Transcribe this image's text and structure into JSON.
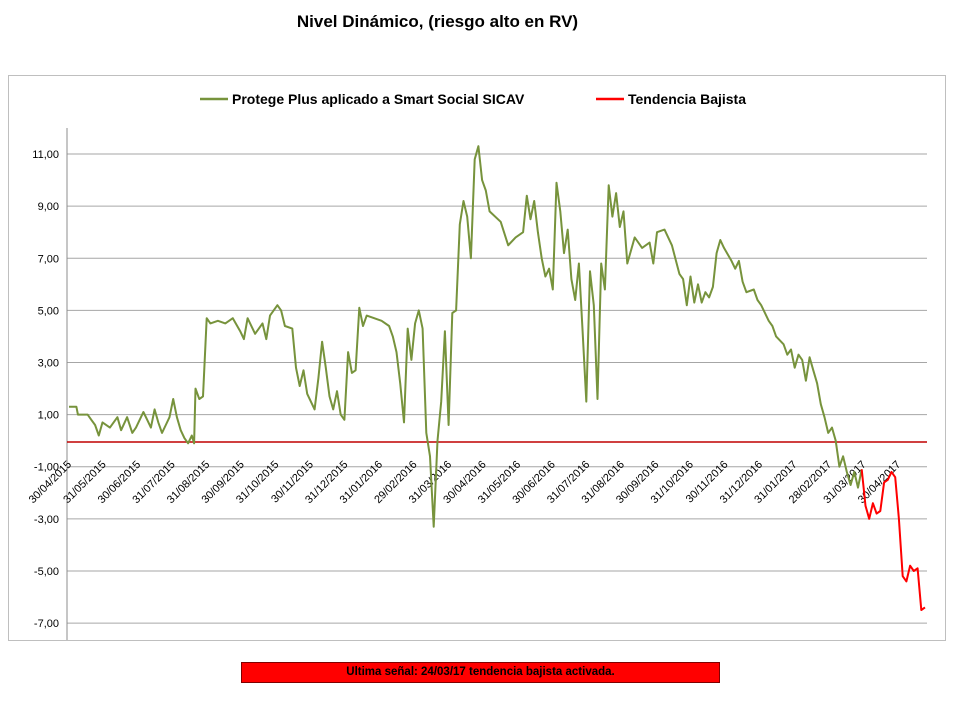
{
  "title": "Nivel Dinámico,  (riesgo alto en RV)",
  "signal_note": "Ultima señal: 24/03/17 tendencia bajista activada.",
  "colors": {
    "green": "#77933c",
    "red": "#ff0000",
    "grid": "#a6a6a6",
    "zero_line": "#c00000"
  },
  "chart_data": {
    "type": "line",
    "title": "",
    "xlabel": "",
    "ylabel": "",
    "ylim": [
      -7,
      12
    ],
    "y_ticks": [
      "11,00",
      "9,00",
      "7,00",
      "5,00",
      "3,00",
      "1,00",
      "-1,00",
      "-3,00",
      "-5,00",
      "-7,00"
    ],
    "x_ticks": [
      "30/04/2015",
      "31/05/2015",
      "30/06/2015",
      "31/07/2015",
      "31/08/2015",
      "30/09/2015",
      "31/10/2015",
      "30/11/2015",
      "31/12/2015",
      "31/01/2016",
      "29/02/2016",
      "31/03/2016",
      "30/04/2016",
      "31/05/2016",
      "30/06/2016",
      "31/07/2016",
      "31/08/2016",
      "30/09/2016",
      "31/10/2016",
      "30/11/2016",
      "31/12/2016",
      "31/01/2017",
      "28/02/2017",
      "31/03/2017",
      "30/04/2017"
    ],
    "legend_position": "top",
    "grid": true,
    "series": [
      {
        "name": "Protege Plus aplicado a Smart Social SICAV",
        "color": "#77933c",
        "points": [
          [
            0,
            1.3
          ],
          [
            1,
            1.3
          ],
          [
            1.2,
            1.0
          ],
          [
            2.5,
            1.0
          ],
          [
            3,
            0.8
          ],
          [
            3.5,
            0.6
          ],
          [
            4,
            0.2
          ],
          [
            4.5,
            0.7
          ],
          [
            5.5,
            0.5
          ],
          [
            6.5,
            0.9
          ],
          [
            7,
            0.4
          ],
          [
            7.8,
            0.9
          ],
          [
            8.5,
            0.3
          ],
          [
            9,
            0.5
          ],
          [
            9.5,
            0.8
          ],
          [
            10,
            1.1
          ],
          [
            10.5,
            0.8
          ],
          [
            11,
            0.5
          ],
          [
            11.5,
            1.2
          ],
          [
            12,
            0.7
          ],
          [
            12.5,
            0.3
          ],
          [
            13,
            0.6
          ],
          [
            13.5,
            0.9
          ],
          [
            14,
            1.6
          ],
          [
            14.5,
            0.9
          ],
          [
            15,
            0.4
          ],
          [
            15.5,
            0.1
          ],
          [
            16,
            -0.1
          ],
          [
            16.5,
            0.2
          ],
          [
            16.8,
            -0.1
          ],
          [
            17,
            2.0
          ],
          [
            17.5,
            1.6
          ],
          [
            18,
            1.7
          ],
          [
            18.5,
            4.7
          ],
          [
            19,
            4.5
          ],
          [
            20,
            4.6
          ],
          [
            21,
            4.5
          ],
          [
            22,
            4.7
          ],
          [
            23,
            4.2
          ],
          [
            23.5,
            3.9
          ],
          [
            24,
            4.7
          ],
          [
            25,
            4.1
          ],
          [
            26,
            4.5
          ],
          [
            26.5,
            3.9
          ],
          [
            27,
            4.8
          ],
          [
            28,
            5.2
          ],
          [
            28.5,
            5.0
          ],
          [
            29,
            4.4
          ],
          [
            30,
            4.3
          ],
          [
            30.5,
            2.8
          ],
          [
            31,
            2.1
          ],
          [
            31.5,
            2.7
          ],
          [
            32,
            1.8
          ],
          [
            33,
            1.2
          ],
          [
            33.5,
            2.4
          ],
          [
            34,
            3.8
          ],
          [
            34.5,
            2.8
          ],
          [
            35,
            1.7
          ],
          [
            35.5,
            1.2
          ],
          [
            36,
            1.9
          ],
          [
            36.5,
            1.0
          ],
          [
            37,
            0.8
          ],
          [
            37.5,
            3.4
          ],
          [
            38,
            2.6
          ],
          [
            38.5,
            2.7
          ],
          [
            39,
            5.1
          ],
          [
            39.5,
            4.4
          ],
          [
            40,
            4.8
          ],
          [
            41,
            4.7
          ],
          [
            42,
            4.6
          ],
          [
            43,
            4.4
          ],
          [
            43.5,
            4.0
          ],
          [
            44,
            3.4
          ],
          [
            44.5,
            2.2
          ],
          [
            45,
            0.7
          ],
          [
            45.5,
            4.3
          ],
          [
            46,
            3.1
          ],
          [
            46.5,
            4.5
          ],
          [
            47,
            5.0
          ],
          [
            47.5,
            4.3
          ],
          [
            48,
            0.3
          ],
          [
            48.5,
            -0.6
          ],
          [
            49,
            -3.3
          ],
          [
            49.5,
            0.0
          ],
          [
            50,
            1.5
          ],
          [
            50.5,
            4.2
          ],
          [
            51,
            0.6
          ],
          [
            51.5,
            4.9
          ],
          [
            52,
            5.0
          ],
          [
            52.5,
            8.3
          ],
          [
            53,
            9.2
          ],
          [
            53.5,
            8.6
          ],
          [
            54,
            7.0
          ],
          [
            54.5,
            10.8
          ],
          [
            55,
            11.3
          ],
          [
            55.5,
            10.0
          ],
          [
            56,
            9.6
          ],
          [
            56.5,
            8.8
          ],
          [
            58,
            8.4
          ],
          [
            59,
            7.5
          ],
          [
            60,
            7.8
          ],
          [
            61,
            8.0
          ],
          [
            61.5,
            9.4
          ],
          [
            62,
            8.5
          ],
          [
            62.5,
            9.2
          ],
          [
            63,
            8.0
          ],
          [
            63.5,
            7.0
          ],
          [
            64,
            6.3
          ],
          [
            64.5,
            6.6
          ],
          [
            65,
            5.8
          ],
          [
            65.5,
            9.9
          ],
          [
            66,
            8.8
          ],
          [
            66.5,
            7.2
          ],
          [
            67,
            8.1
          ],
          [
            67.5,
            6.2
          ],
          [
            68,
            5.4
          ],
          [
            68.5,
            6.8
          ],
          [
            69,
            4.2
          ],
          [
            69.5,
            1.5
          ],
          [
            70,
            6.5
          ],
          [
            70.5,
            5.2
          ],
          [
            71,
            1.6
          ],
          [
            71.5,
            6.8
          ],
          [
            72,
            5.8
          ],
          [
            72.5,
            9.8
          ],
          [
            73,
            8.6
          ],
          [
            73.5,
            9.5
          ],
          [
            74,
            8.2
          ],
          [
            74.5,
            8.8
          ],
          [
            75,
            6.8
          ],
          [
            76,
            7.8
          ],
          [
            77,
            7.4
          ],
          [
            78,
            7.6
          ],
          [
            78.5,
            6.8
          ],
          [
            79,
            8.0
          ],
          [
            80,
            8.1
          ],
          [
            81,
            7.5
          ],
          [
            82,
            6.4
          ],
          [
            82.5,
            6.2
          ],
          [
            83,
            5.2
          ],
          [
            83.5,
            6.3
          ],
          [
            84,
            5.3
          ],
          [
            84.5,
            6.0
          ],
          [
            85,
            5.3
          ],
          [
            85.5,
            5.7
          ],
          [
            86,
            5.5
          ],
          [
            86.5,
            5.9
          ],
          [
            87,
            7.2
          ],
          [
            87.5,
            7.7
          ],
          [
            88,
            7.4
          ],
          [
            89,
            6.9
          ],
          [
            89.5,
            6.6
          ],
          [
            90,
            6.9
          ],
          [
            90.5,
            6.1
          ],
          [
            91,
            5.7
          ],
          [
            92,
            5.8
          ],
          [
            92.5,
            5.4
          ],
          [
            93,
            5.2
          ],
          [
            94,
            4.6
          ],
          [
            94.5,
            4.4
          ],
          [
            95,
            4.0
          ],
          [
            96,
            3.7
          ],
          [
            96.5,
            3.3
          ],
          [
            97,
            3.5
          ],
          [
            97.5,
            2.8
          ],
          [
            98,
            3.3
          ],
          [
            98.5,
            3.1
          ],
          [
            99,
            2.3
          ],
          [
            99.5,
            3.2
          ],
          [
            100,
            2.7
          ],
          [
            100.5,
            2.2
          ],
          [
            101,
            1.4
          ],
          [
            101.5,
            0.9
          ],
          [
            102,
            0.3
          ],
          [
            102.5,
            0.5
          ],
          [
            103,
            0.0
          ],
          [
            103.5,
            -1.0
          ],
          [
            104,
            -0.6
          ],
          [
            104.5,
            -1.2
          ],
          [
            105,
            -1.7
          ],
          [
            105.5,
            -1.2
          ],
          [
            106,
            -1.8
          ],
          [
            106.5,
            -1.1
          ]
        ]
      },
      {
        "name": "Tendencia Bajista",
        "color": "#ff0000",
        "points": [
          [
            106.5,
            -1.1
          ],
          [
            107,
            -2.5
          ],
          [
            107.5,
            -3.0
          ],
          [
            108,
            -2.4
          ],
          [
            108.5,
            -2.8
          ],
          [
            109,
            -2.7
          ],
          [
            109.5,
            -1.6
          ],
          [
            110,
            -1.5
          ],
          [
            110.5,
            -1.2
          ],
          [
            111,
            -1.4
          ],
          [
            111.5,
            -3.0
          ],
          [
            112,
            -5.2
          ],
          [
            112.5,
            -5.4
          ],
          [
            113,
            -4.8
          ],
          [
            113.5,
            -5.0
          ],
          [
            114,
            -4.9
          ],
          [
            114.5,
            -6.5
          ],
          [
            115,
            -6.4
          ]
        ]
      }
    ],
    "reference_line": {
      "y": -0.05
    }
  }
}
